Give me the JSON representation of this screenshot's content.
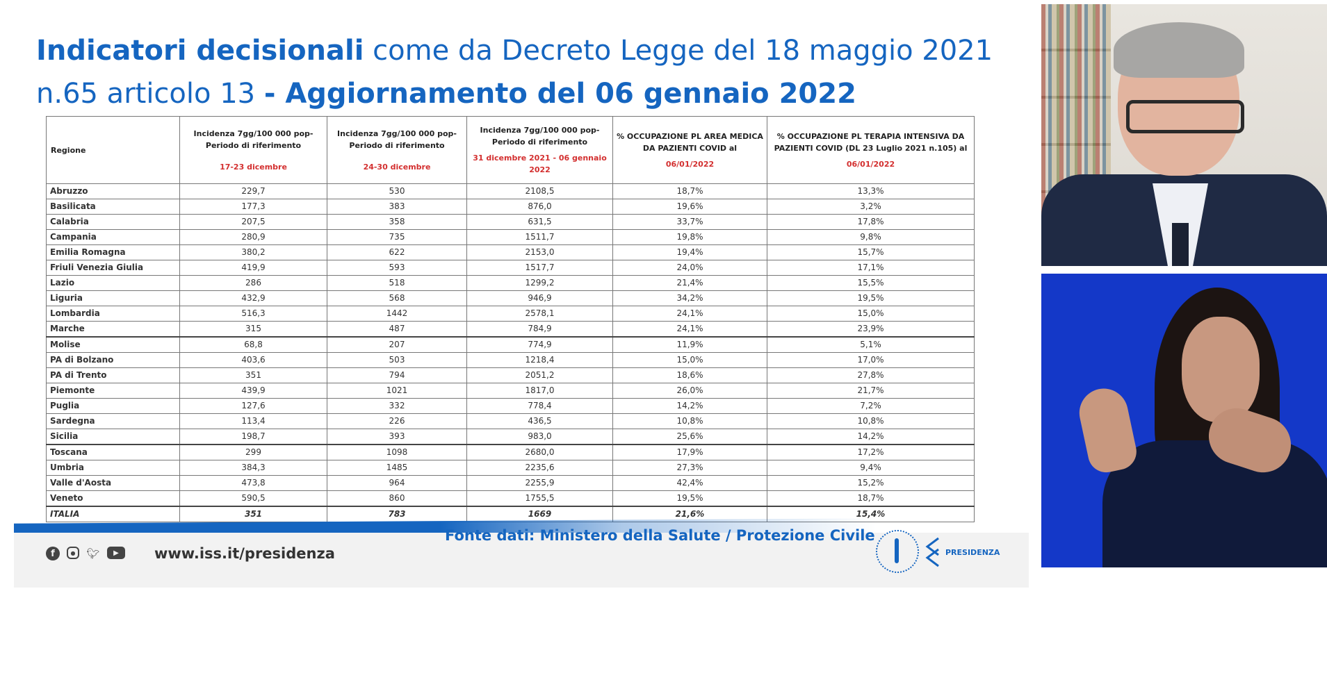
{
  "slide": {
    "title_bold_1": "Indicatori decisionali",
    "title_normal": " come da Decreto Legge del 18 maggio 2021 n.65 articolo 13 ",
    "title_bold_2": "- Aggiornamento del 06 gennaio 2022"
  },
  "table": {
    "headers": {
      "region": "Regione",
      "col1_text": "Incidenza 7gg/100 000 pop- Periodo di riferimento",
      "col1_period": "17-23 dicembre",
      "col2_text": "Incidenza 7gg/100 000 pop- Periodo di riferimento",
      "col2_period": "24-30 dicembre",
      "col3_text": "Incidenza 7gg/100 000 pop- Periodo di riferimento",
      "col3_period": "31 dicembre 2021 - 06 gennaio 2022",
      "col4_text": "% OCCUPAZIONE PL AREA MEDICA DA PAZIENTI COVID al",
      "col4_date": "06/01/2022",
      "col5_text": "% OCCUPAZIONE PL TERAPIA INTENSIVA DA PAZIENTI COVID (DL 23 Luglio 2021 n.105) al",
      "col5_date": "06/01/2022"
    },
    "rows": [
      {
        "region": "Abruzzo",
        "c1": "229,7",
        "c2": "530",
        "c3": "2108,5",
        "c4": "18,7%",
        "c5": "13,3%"
      },
      {
        "region": "Basilicata",
        "c1": "177,3",
        "c2": "383",
        "c3": "876,0",
        "c4": "19,6%",
        "c5": "3,2%"
      },
      {
        "region": "Calabria",
        "c1": "207,5",
        "c2": "358",
        "c3": "631,5",
        "c4": "33,7%",
        "c5": "17,8%"
      },
      {
        "region": "Campania",
        "c1": "280,9",
        "c2": "735",
        "c3": "1511,7",
        "c4": "19,8%",
        "c5": "9,8%"
      },
      {
        "region": "Emilia Romagna",
        "c1": "380,2",
        "c2": "622",
        "c3": "2153,0",
        "c4": "19,4%",
        "c5": "15,7%"
      },
      {
        "region": "Friuli Venezia Giulia",
        "c1": "419,9",
        "c2": "593",
        "c3": "1517,7",
        "c4": "24,0%",
        "c5": "17,1%"
      },
      {
        "region": "Lazio",
        "c1": "286",
        "c2": "518",
        "c3": "1299,2",
        "c4": "21,4%",
        "c5": "15,5%"
      },
      {
        "region": "Liguria",
        "c1": "432,9",
        "c2": "568",
        "c3": "946,9",
        "c4": "34,2%",
        "c5": "19,5%"
      },
      {
        "region": "Lombardia",
        "c1": "516,3",
        "c2": "1442",
        "c3": "2578,1",
        "c4": "24,1%",
        "c5": "15,0%"
      },
      {
        "region": "Marche",
        "c1": "315",
        "c2": "487",
        "c3": "784,9",
        "c4": "24,1%",
        "c5": "23,9%"
      },
      {
        "region": "Molise",
        "c1": "68,8",
        "c2": "207",
        "c3": "774,9",
        "c4": "11,9%",
        "c5": "5,1%"
      },
      {
        "region": "PA di Bolzano",
        "c1": "403,6",
        "c2": "503",
        "c3": "1218,4",
        "c4": "15,0%",
        "c5": "17,0%"
      },
      {
        "region": "PA di Trento",
        "c1": "351",
        "c2": "794",
        "c3": "2051,2",
        "c4": "18,6%",
        "c5": "27,8%"
      },
      {
        "region": "Piemonte",
        "c1": "439,9",
        "c2": "1021",
        "c3": "1817,0",
        "c4": "26,0%",
        "c5": "21,7%"
      },
      {
        "region": "Puglia",
        "c1": "127,6",
        "c2": "332",
        "c3": "778,4",
        "c4": "14,2%",
        "c5": "7,2%"
      },
      {
        "region": "Sardegna",
        "c1": "113,4",
        "c2": "226",
        "c3": "436,5",
        "c4": "10,8%",
        "c5": "10,8%"
      },
      {
        "region": "Sicilia",
        "c1": "198,7",
        "c2": "393",
        "c3": "983,0",
        "c4": "25,6%",
        "c5": "14,2%"
      },
      {
        "region": "Toscana",
        "c1": "299",
        "c2": "1098",
        "c3": "2680,0",
        "c4": "17,9%",
        "c5": "17,2%"
      },
      {
        "region": "Umbria",
        "c1": "384,3",
        "c2": "1485",
        "c3": "2235,6",
        "c4": "27,3%",
        "c5": "9,4%"
      },
      {
        "region": "Valle d'Aosta",
        "c1": "473,8",
        "c2": "964",
        "c3": "2255,9",
        "c4": "42,4%",
        "c5": "15,2%"
      },
      {
        "region": "Veneto",
        "c1": "590,5",
        "c2": "860",
        "c3": "1755,5",
        "c4": "19,5%",
        "c5": "18,7%"
      }
    ],
    "total": {
      "region": "ITALIA",
      "c1": "351",
      "c2": "783",
      "c3": "1669",
      "c4": "21,6%",
      "c5": "15,4%"
    }
  },
  "footer": {
    "social_icons": [
      "facebook-icon",
      "instagram-icon",
      "twitter-icon",
      "youtube-icon"
    ],
    "website": "www.iss.it/presidenza",
    "source": "Fonte dati: Ministero della Salute / Protezione Civile",
    "logo_text": "PRESIDENZA"
  },
  "colors": {
    "title_blue": "#1565c0",
    "period_red": "#d32f2f",
    "signer_background": "#1438c8"
  }
}
